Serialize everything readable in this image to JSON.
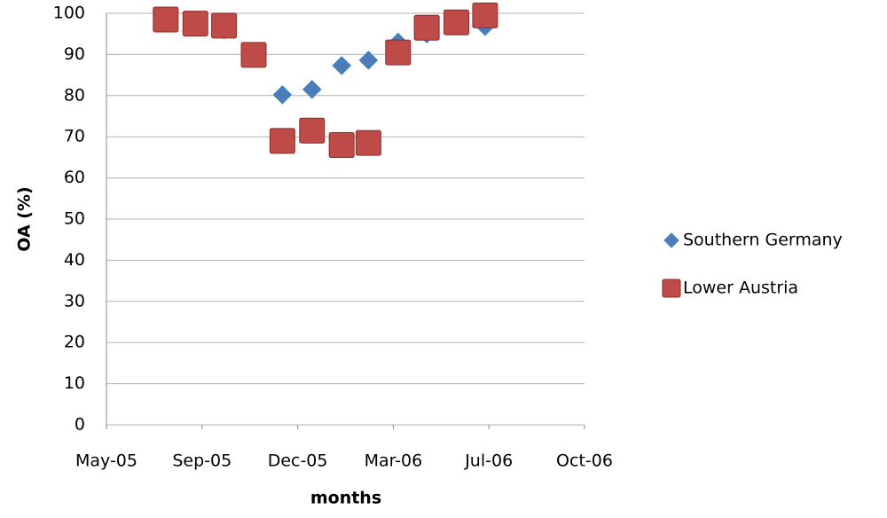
{
  "chart_data": {
    "type": "scatter",
    "x_label": "months",
    "y_label": "OA (%)",
    "x": [
      "2005-08-01",
      "2005-09-01",
      "2005-10-01",
      "2005-11-01",
      "2005-12-01",
      "2006-01-01",
      "2006-02-01",
      "2006-03-01",
      "2006-04-01",
      "2006-05-01",
      "2006-06-01",
      "2006-07-01"
    ],
    "series": [
      {
        "name": "Southern Germany",
        "color": "#4a7ebb",
        "marker": "diamond",
        "values": [
          98,
          97,
          96,
          90,
          80.2,
          81.5,
          87.3,
          88.6,
          93,
          95,
          97,
          96.8
        ]
      },
      {
        "name": "Lower Austria",
        "color": "#be4b48",
        "marker": "square",
        "values": [
          98.5,
          97.5,
          97,
          89.9,
          69,
          71.5,
          68,
          68.5,
          90.5,
          96.5,
          97.8,
          99.5
        ]
      }
    ],
    "xlim": [
      "2005-05-31",
      "2006-10-13"
    ],
    "xticks": [
      {
        "value": "2005-05-31",
        "label": "May-05"
      },
      {
        "value": "2005-09-08",
        "label": "Sep-05"
      },
      {
        "value": "2005-12-17",
        "label": "Dec-05"
      },
      {
        "value": "2006-03-27",
        "label": "Mar-06"
      },
      {
        "value": "2006-07-05",
        "label": "Jul-06"
      },
      {
        "value": "2006-10-13",
        "label": "Oct-06"
      }
    ],
    "ylim": [
      0,
      100
    ],
    "yticks": [
      0,
      10,
      20,
      30,
      40,
      50,
      60,
      70,
      80,
      90,
      100
    ],
    "grid": true,
    "legend": "right"
  }
}
